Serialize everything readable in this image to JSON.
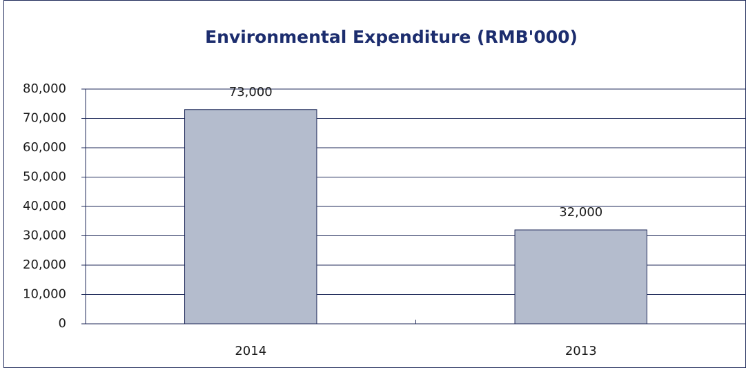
{
  "chart_data": {
    "type": "bar",
    "title": "Environmental Expenditure (RMB'000)",
    "categories": [
      "2014",
      "2013"
    ],
    "values": [
      73000,
      32000
    ],
    "value_labels": [
      "73,000",
      "32,000"
    ],
    "color": "#b4bccd",
    "ylim": [
      0,
      80000
    ],
    "yticks": [
      0,
      {
        "value": 10000,
        "label": "10,000"
      },
      {
        "value": 20000,
        "label": "20,000"
      },
      {
        "value": 30000,
        "label": "30,000"
      },
      {
        "value": 40000,
        "label": "40,000"
      },
      {
        "value": 50000,
        "label": "50,000"
      },
      {
        "value": 60000,
        "label": "60,000"
      },
      {
        "value": 70000,
        "label": "70,000"
      },
      {
        "value": 80000,
        "label": "80,000"
      }
    ],
    "grid": true
  }
}
